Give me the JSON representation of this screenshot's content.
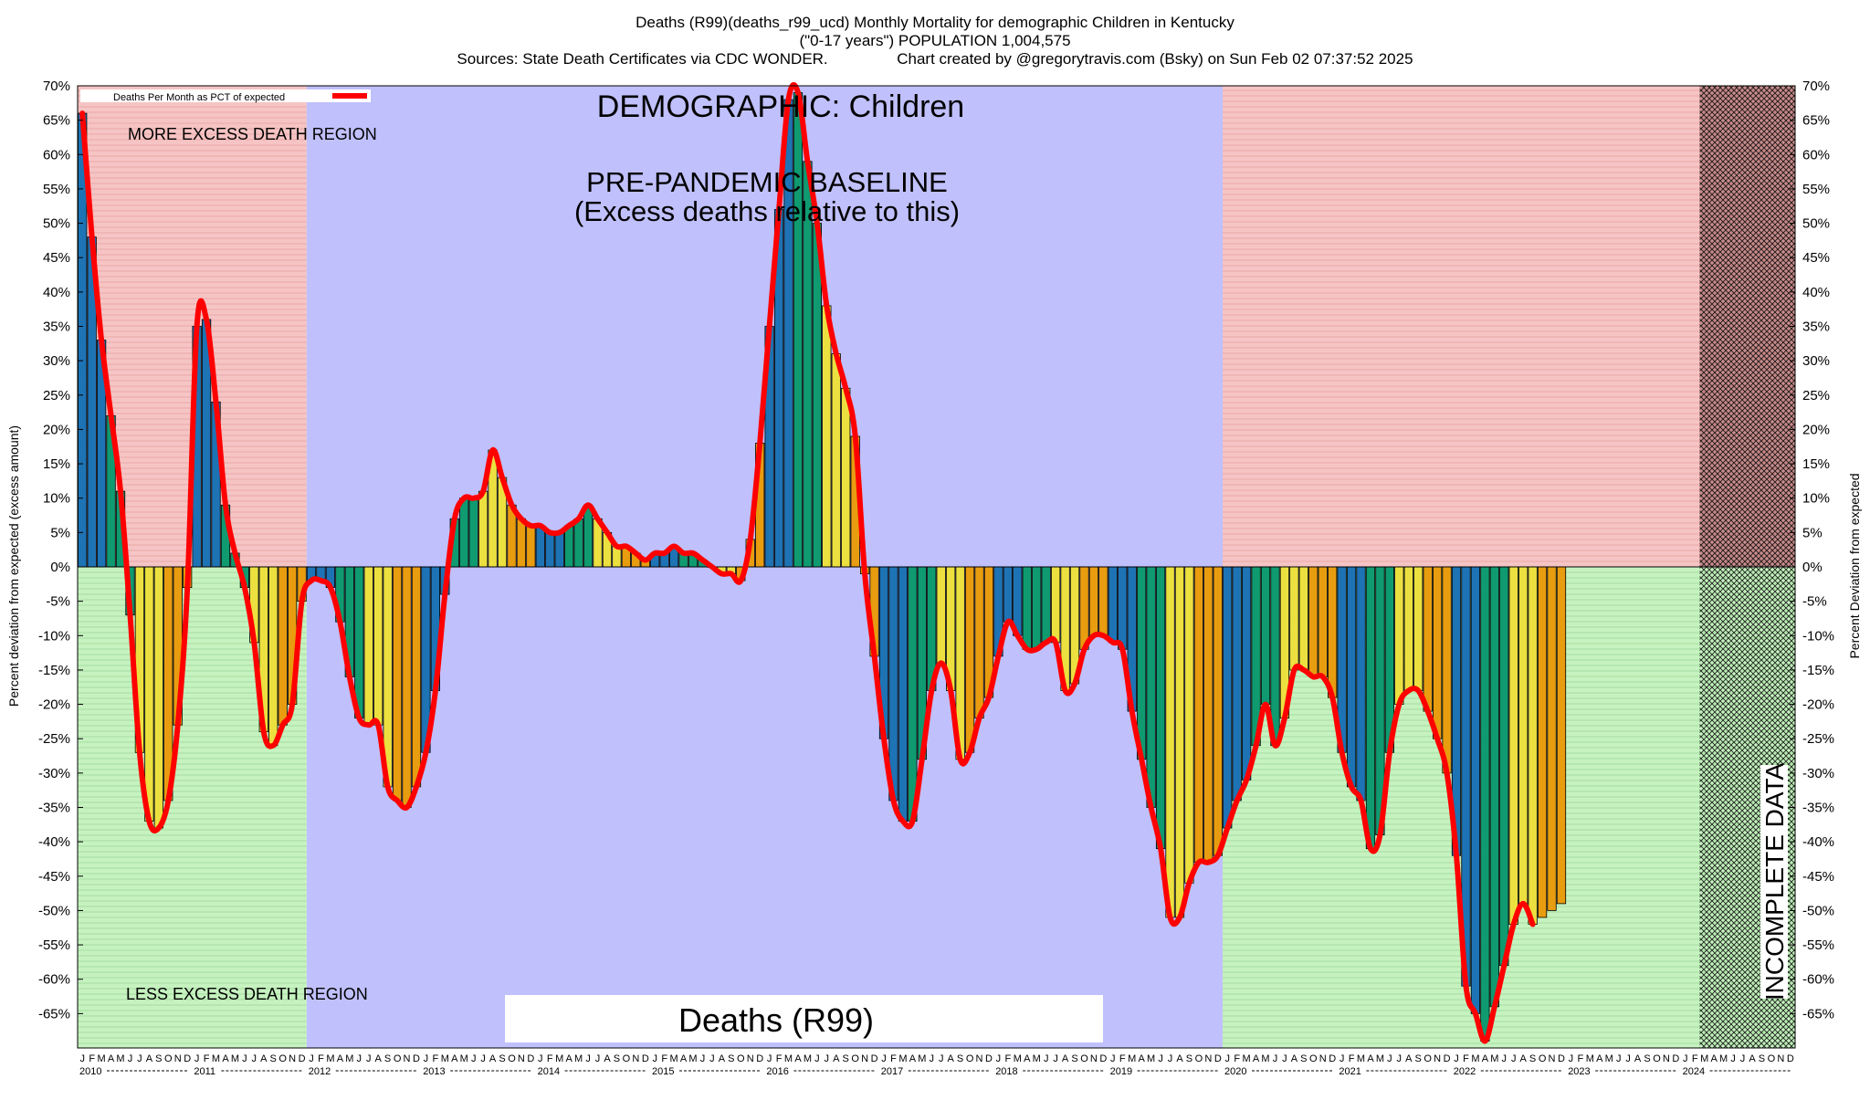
{
  "chart_data": {
    "type": "bar",
    "title_lines": [
      "Deaths (R99)(deaths_r99_ucd) Monthly Mortality for demographic Children in Kentucky",
      "(\"0-17 years\") POPULATION 1,004,575",
      "Sources: State Death Certificates via CDC WONDER.                Chart created by @gregorytravis.com (Bsky) on Sun Feb 02 07:37:52 2025"
    ],
    "ylabel_left": "Percent deviation from expected (excess amount)",
    "ylabel_right": "Percent Deviation from expected",
    "ylim": [
      -70,
      70
    ],
    "y_ticks": [
      70,
      65,
      60,
      55,
      50,
      45,
      40,
      35,
      30,
      25,
      20,
      15,
      10,
      5,
      0,
      -5,
      -10,
      -15,
      -20,
      -25,
      -30,
      -35,
      -40,
      -45,
      -50,
      -55,
      -60,
      -65
    ],
    "y_tick_labels": [
      "70%",
      "65%",
      "60%",
      "55%",
      "50%",
      "45%",
      "40%",
      "35%",
      "30%",
      "25%",
      "20%",
      "15%",
      "10%",
      "5%",
      "0%",
      "-5%",
      "-10%",
      "-15%",
      "-20%",
      "-25%",
      "-30%",
      "-35%",
      "-40%",
      "-45%",
      "-50%",
      "-55%",
      "-60%",
      "-65%"
    ],
    "legend_label": "Deaths Per Month as PCT of expected",
    "legend_position": "top-left",
    "month_letters": [
      "J",
      "F",
      "M",
      "A",
      "M",
      "J",
      "J",
      "A",
      "S",
      "O",
      "N",
      "D"
    ],
    "years": [
      "2010",
      "2011",
      "2012",
      "2013",
      "2014",
      "2015",
      "2016",
      "2017",
      "2018",
      "2019",
      "2020",
      "2021",
      "2022",
      "2023",
      "2024"
    ],
    "annotations": {
      "demographic": "DEMOGRAPHIC: Children",
      "baseline_line1": "PRE-PANDEMIC BASELINE",
      "baseline_line2": "(Excess deaths relative to this)",
      "more_excess": "MORE EXCESS DEATH REGION",
      "less_excess": "LESS EXCESS DEATH REGION",
      "cause_box": "Deaths (R99)",
      "incomplete": "INCOMPLETE DATA"
    },
    "regions": {
      "baseline_start": "2012-01",
      "baseline_end": "2019-12",
      "incomplete_start": "2024-03"
    },
    "colors": {
      "more_excess_bg": "#f6c4c4",
      "less_excess_bg": "#c6f2c0",
      "baseline_bg": "#c0c0fc",
      "incomplete_fill": "#a06060",
      "line": "#ff0000",
      "bar_cycle": [
        "#1e73b4",
        "#109a70",
        "#ece040",
        "#e89c10"
      ]
    },
    "start": "2010-01",
    "values": [
      66,
      48,
      33,
      22,
      11,
      -7,
      -27,
      -37,
      -38,
      -34,
      -23,
      -3,
      35,
      36,
      24,
      9,
      2,
      -3,
      -11,
      -24,
      -26,
      -23,
      -20,
      -5,
      -2,
      -2,
      -3,
      -8,
      -16,
      -22,
      -23,
      -23,
      -32,
      -34,
      -35,
      -32,
      -27,
      -18,
      -4,
      7,
      10,
      10,
      11,
      17,
      13,
      9,
      7,
      6,
      6,
      5,
      5,
      6,
      7,
      9,
      7,
      5,
      3,
      3,
      2,
      1,
      2,
      2,
      3,
      2,
      2,
      1,
      0,
      -1,
      -1,
      -2,
      4,
      18,
      35,
      52,
      68,
      69,
      59,
      50,
      38,
      31,
      26,
      19,
      -1,
      -13,
      -25,
      -34,
      -37,
      -37,
      -28,
      -18,
      -14,
      -18,
      -28,
      -27,
      -22,
      -19,
      -13,
      -8,
      -10,
      -12,
      -12,
      -11,
      -11,
      -18,
      -17,
      -12,
      -10,
      -10,
      -11,
      -12,
      -21,
      -28,
      -35,
      -41,
      -51,
      -51,
      -46,
      -43,
      -43,
      -42,
      -38,
      -34,
      -31,
      -26,
      -20,
      -26,
      -22,
      -15,
      -15,
      -16,
      -16,
      -19,
      -27,
      -32,
      -34,
      -41,
      -39,
      -27,
      -20,
      -18,
      -18,
      -21,
      -25,
      -30,
      -42,
      -61,
      -65,
      -69,
      -64,
      -58,
      -52,
      -49,
      -52,
      -51,
      -50,
      -49
    ],
    "line_values": [
      66,
      48,
      33,
      22,
      11,
      -7,
      -27,
      -37,
      -38,
      -34,
      -23,
      -3,
      35,
      36,
      24,
      9,
      2,
      -3,
      -11,
      -24,
      -26,
      -23,
      -20,
      -5,
      -2,
      -2,
      -3,
      -8,
      -16,
      -22,
      -23,
      -23,
      -32,
      -34,
      -35,
      -32,
      -27,
      -18,
      -4,
      7,
      10,
      10,
      11,
      17,
      13,
      9,
      7,
      6,
      6,
      5,
      5,
      6,
      7,
      9,
      7,
      5,
      3,
      3,
      2,
      1,
      2,
      2,
      3,
      2,
      2,
      1,
      0,
      -1,
      -1,
      -2,
      4,
      18,
      35,
      52,
      68,
      69,
      59,
      50,
      38,
      31,
      26,
      19,
      -1,
      -13,
      -25,
      -34,
      -37,
      -37,
      -28,
      -18,
      -14,
      -18,
      -28,
      -27,
      -22,
      -19,
      -13,
      -8,
      -10,
      -12,
      -12,
      -11,
      -11,
      -18,
      -17,
      -12,
      -10,
      -10,
      -11,
      -12,
      -21,
      -28,
      -35,
      -41,
      -51,
      -51,
      -46,
      -43,
      -43,
      -42,
      -38,
      -34,
      -31,
      -26,
      -20,
      -26,
      -22,
      -15,
      -15,
      -16,
      -16,
      -19,
      -27,
      -32,
      -34,
      -41,
      -39,
      -27,
      -20,
      -18,
      -18,
      -21,
      -25,
      -30,
      -42,
      -61,
      -65,
      -69,
      -64,
      -58,
      -52,
      -49,
      -52
    ]
  }
}
